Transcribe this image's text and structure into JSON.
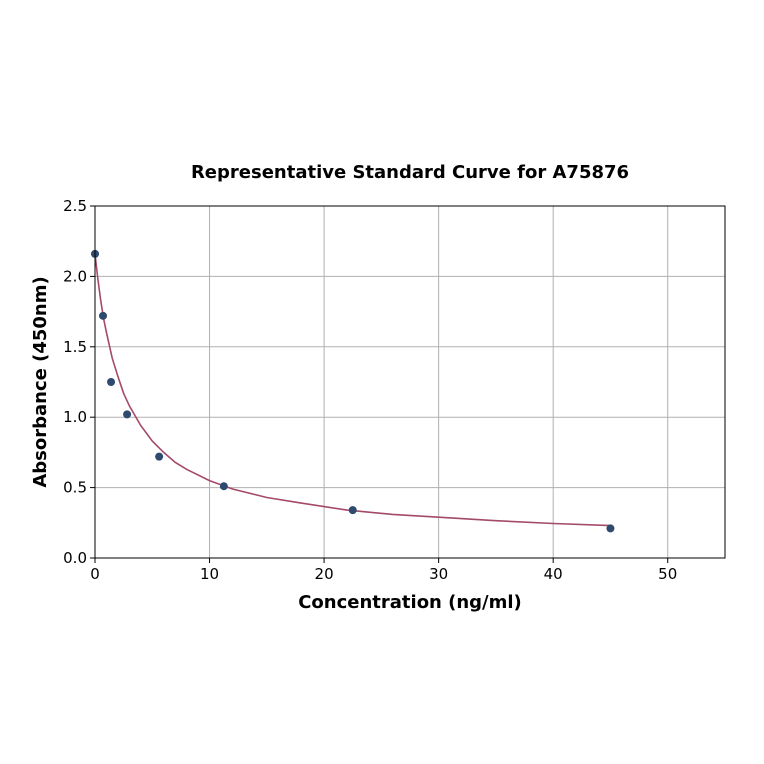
{
  "chart_data": {
    "type": "scatter",
    "title": "Representative Standard Curve for A75876",
    "xlabel": "Concentration (ng/ml)",
    "ylabel": "Absorbance (450nm)",
    "xlim": [
      0,
      55
    ],
    "ylim": [
      0,
      2.5
    ],
    "xticks": [
      0,
      10,
      20,
      30,
      40,
      50
    ],
    "yticks": [
      0.0,
      0.5,
      1.0,
      1.5,
      2.0,
      2.5
    ],
    "xtick_labels": [
      "0",
      "10",
      "20",
      "30",
      "40",
      "50"
    ],
    "ytick_labels": [
      "0.0",
      "0.5",
      "1.0",
      "1.5",
      "2.0",
      "2.5"
    ],
    "grid": true,
    "legend": "none",
    "points": {
      "x": [
        0,
        0.7,
        1.4,
        2.8,
        5.6,
        11.25,
        22.5,
        45
      ],
      "y": [
        2.16,
        1.72,
        1.25,
        1.02,
        0.72,
        0.51,
        0.34,
        0.21
      ]
    },
    "fit_curve": {
      "x": [
        0,
        0.25,
        0.5,
        0.75,
        1,
        1.5,
        2,
        2.5,
        3,
        4,
        5,
        6,
        7,
        8,
        10,
        12,
        15,
        18,
        22,
        26,
        30,
        35,
        40,
        45
      ],
      "y": [
        2.16,
        1.98,
        1.83,
        1.7,
        1.6,
        1.42,
        1.29,
        1.17,
        1.08,
        0.94,
        0.83,
        0.75,
        0.68,
        0.63,
        0.55,
        0.49,
        0.43,
        0.39,
        0.34,
        0.31,
        0.29,
        0.265,
        0.245,
        0.23
      ]
    },
    "colors": {
      "point": "#2e4a6e",
      "curve": "#a34a6b",
      "grid": "#b0b0b0",
      "axis": "#000000"
    }
  }
}
